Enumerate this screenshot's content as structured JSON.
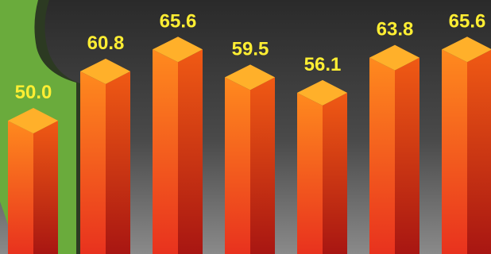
{
  "chart_data": {
    "type": "bar",
    "style": "3d-column",
    "values": [
      50.0,
      60.8,
      65.6,
      59.5,
      56.1,
      63.8,
      65.6
    ],
    "labels": [
      "50.0",
      "60.8",
      "65.6",
      "59.5",
      "56.1",
      "63.8",
      "65.6"
    ],
    "visible_range": [
      20,
      66
    ],
    "grid": false,
    "legend": "none"
  },
  "colors": {
    "bar_front_top": "#ff8a1e",
    "bar_front_bottom": "#e8321e",
    "bar_side_top": "#f05a14",
    "bar_side_bottom": "#a81612",
    "bar_cap": "#ffb02a",
    "label": "#ffee33",
    "background_top": "#2a2a2a",
    "background_bottom": "#8a8a8a",
    "map_shape": "#6aab3c",
    "map_shadow": "#2c3a22"
  }
}
